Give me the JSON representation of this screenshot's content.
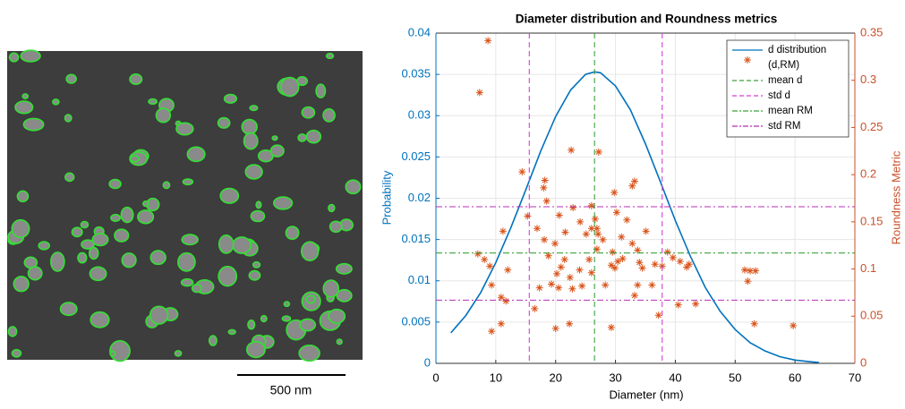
{
  "image": {
    "scale_bar": "500 nm"
  },
  "chart_data": {
    "type": "line",
    "title": "Diameter distribution and Roundness metrics",
    "xlabel": "Diameter (nm)",
    "ylabel": "Probability",
    "y2label": "Roundness Metric",
    "xlim": [
      0,
      70
    ],
    "xticks": [
      0,
      10,
      20,
      30,
      40,
      50,
      60,
      70
    ],
    "ylim": [
      0,
      0.04
    ],
    "yticks": [
      0,
      0.005,
      0.01,
      0.015,
      0.02,
      0.025,
      0.03,
      0.035,
      0.04
    ],
    "y2lim": [
      0,
      0.35
    ],
    "y2ticks": [
      0,
      0.05,
      0.1,
      0.15,
      0.2,
      0.25,
      0.3,
      0.35
    ],
    "grid": true,
    "legend": "upper right",
    "series": [
      {
        "name": "d distribution",
        "color": "#0072bd",
        "style": "line",
        "x": [
          2.5,
          5,
          7.5,
          10,
          12.5,
          15,
          17.5,
          20,
          22.5,
          25,
          26.5,
          27.5,
          30,
          32.5,
          35,
          37.5,
          40,
          42.5,
          45,
          47.5,
          50,
          52.5,
          55,
          57.5,
          60,
          62.5,
          64
        ],
        "values": [
          0.0037,
          0.0058,
          0.0086,
          0.0122,
          0.0164,
          0.021,
          0.0257,
          0.0299,
          0.0331,
          0.035,
          0.0353,
          0.0352,
          0.0336,
          0.0307,
          0.0266,
          0.022,
          0.0173,
          0.013,
          0.0092,
          0.0063,
          0.0041,
          0.0025,
          0.0015,
          0.0008,
          0.0004,
          0.0002,
          0.0001
        ]
      },
      {
        "name": "(d,RM)",
        "color": "#d95319",
        "style": "scatter",
        "axis": "y2",
        "x": [
          8.7,
          7.3,
          14.4,
          18.2,
          18.0,
          18.5,
          22.6,
          27.2,
          32.8,
          33.2,
          29.8,
          15.3,
          11.2,
          7.0,
          8.1,
          9.0,
          12.0,
          10.9,
          11.7,
          9.3,
          10.9,
          9.3,
          16.5,
          18.1,
          19.9,
          20.6,
          21.6,
          22.9,
          24.1,
          25.1,
          26.0,
          26.6,
          27.1,
          26.9,
          25.6,
          27.9,
          29.5,
          30.4,
          29.9,
          31.0,
          31.9,
          32.8,
          33.7,
          34.5,
          33.7,
          35.1,
          33.2,
          21.5,
          20.9,
          20.2,
          19.3,
          20.5,
          22.4,
          22.8,
          24.0,
          24.4,
          26.0,
          28.3,
          29.3,
          20.0,
          22.3,
          29.3,
          36.6,
          37.8,
          38.7,
          39.6,
          40.8,
          41.9,
          37.2,
          40.5,
          43.4,
          42.3,
          51.6,
          52.1,
          52.5,
          53.4,
          53.2,
          59.7,
          16.9,
          18.8,
          17.3,
          26.0,
          26.9,
          30.2,
          31.2,
          34.0,
          36.1
        ],
        "values": [
          0.342,
          0.287,
          0.203,
          0.194,
          0.186,
          0.172,
          0.226,
          0.224,
          0.188,
          0.193,
          0.181,
          0.156,
          0.14,
          0.116,
          0.11,
          0.103,
          0.099,
          0.07,
          0.066,
          0.083,
          0.042,
          0.034,
          0.058,
          0.131,
          0.127,
          0.157,
          0.139,
          0.165,
          0.15,
          0.137,
          0.143,
          0.153,
          0.137,
          0.121,
          0.11,
          0.131,
          0.118,
          0.108,
          0.101,
          0.134,
          0.152,
          0.127,
          0.12,
          0.101,
          0.083,
          0.14,
          0.072,
          0.11,
          0.102,
          0.095,
          0.084,
          0.08,
          0.091,
          0.079,
          0.099,
          0.082,
          0.096,
          0.083,
          0.104,
          0.037,
          0.042,
          0.038,
          0.105,
          0.103,
          0.118,
          0.112,
          0.108,
          0.102,
          0.051,
          0.062,
          0.063,
          0.105,
          0.099,
          0.087,
          0.098,
          0.098,
          0.042,
          0.04,
          0.143,
          0.114,
          0.08,
          0.167,
          0.143,
          0.16,
          0.111,
          0.107,
          0.083
        ]
      },
      {
        "name": "mean d",
        "color": "#3aa33a",
        "style": "vline-dashed",
        "x": [
          26.5
        ]
      },
      {
        "name": "std d",
        "color": "#d63fd6",
        "style": "vline-dashed",
        "x": [
          15.6,
          37.8
        ]
      },
      {
        "name": "mean RM",
        "color": "#3aa33a",
        "style": "hline-dashdot",
        "axis": "y2",
        "values": [
          0.117
        ]
      },
      {
        "name": "std RM",
        "color": "#b52fb5",
        "style": "hline-dashdot",
        "axis": "y2",
        "values": [
          0.067,
          0.166
        ]
      }
    ]
  }
}
